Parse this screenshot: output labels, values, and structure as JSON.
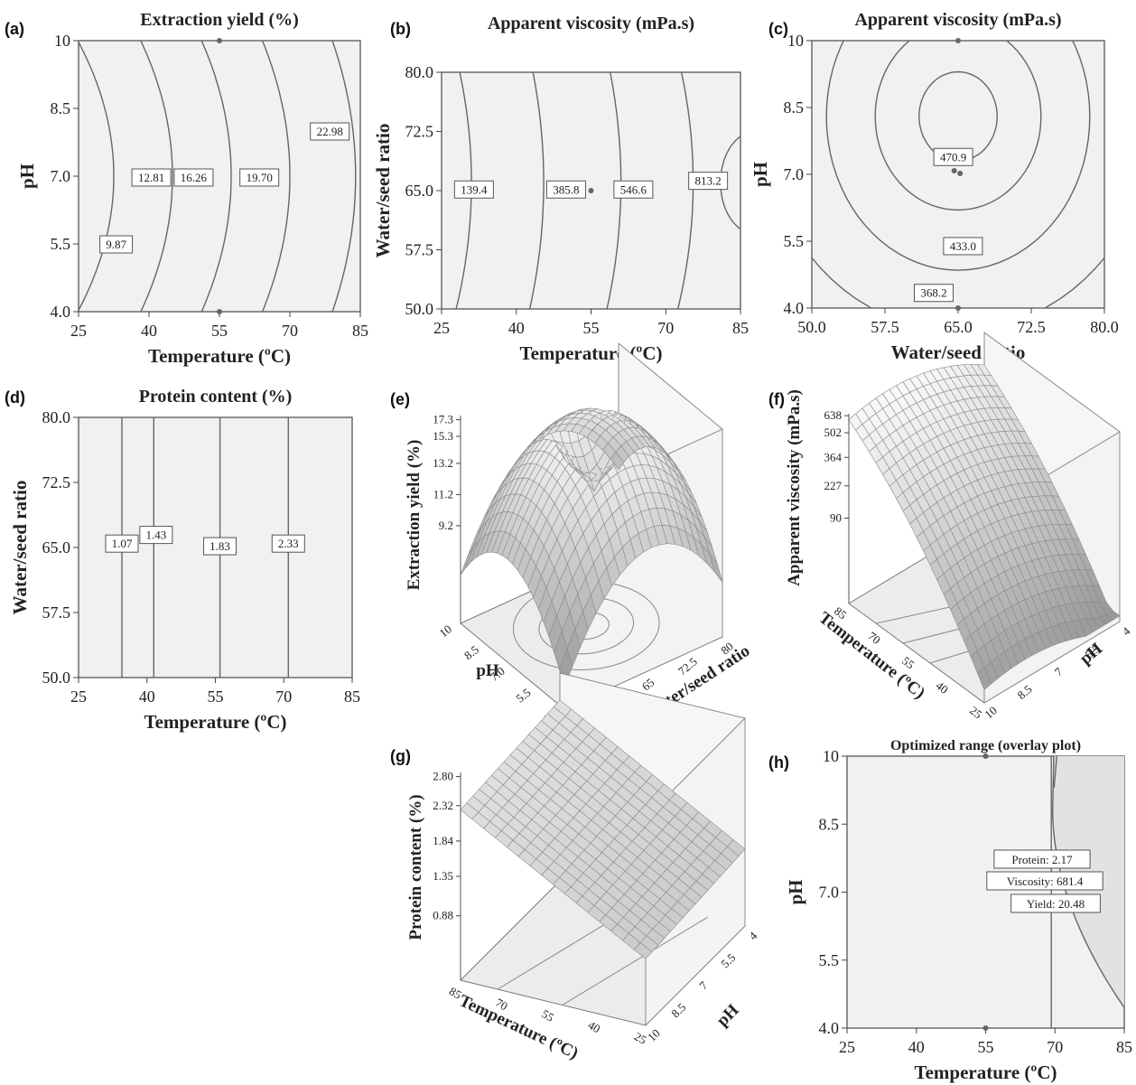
{
  "chart_data": [
    {
      "panel": "(a)",
      "type": "contour",
      "title": "Extraction yield (%)",
      "xlabel": "Temperature (ºC)",
      "ylabel": "pH",
      "xticks": [
        "25",
        "40",
        "55",
        "70",
        "85"
      ],
      "yticks": [
        "4.0",
        "5.5",
        "7.0",
        "8.5",
        "10"
      ],
      "xlim": [
        25,
        85
      ],
      "ylim": [
        4,
        10
      ],
      "contour_labels": [
        {
          "text": "9.87",
          "x": 33,
          "y": 5.5
        },
        {
          "text": "12.81",
          "x": 40.5,
          "y": 6.98
        },
        {
          "text": "16.26",
          "x": 49.5,
          "y": 6.98
        },
        {
          "text": "19.70",
          "x": 63.5,
          "y": 6.98
        },
        {
          "text": "22.98",
          "x": 78.5,
          "y": 8.0
        }
      ],
      "design_points": [
        {
          "x": 55,
          "y": 10
        },
        {
          "x": 55,
          "y": 4
        }
      ]
    },
    {
      "panel": "(b)",
      "type": "contour",
      "title": "Apparent viscosity (mPa.s)",
      "xlabel": "Temperature (ºC)",
      "ylabel": "Water/seed ratio",
      "xticks": [
        "25",
        "40",
        "55",
        "70",
        "85"
      ],
      "yticks": [
        "50.0",
        "57.5",
        "65.0",
        "72.5",
        "80.0"
      ],
      "xlim": [
        25,
        85
      ],
      "ylim": [
        50,
        80
      ],
      "contour_labels": [
        {
          "text": "139.4",
          "x": 31.5,
          "y": 65.2
        },
        {
          "text": "385.8",
          "x": 50,
          "y": 65.2
        },
        {
          "text": "546.6",
          "x": 63.5,
          "y": 65.2
        },
        {
          "text": "813.2",
          "x": 78.5,
          "y": 66.3
        }
      ],
      "design_points": [
        {
          "x": 55,
          "y": 65
        }
      ]
    },
    {
      "panel": "(c)",
      "type": "contour",
      "title": "Apparent viscosity (mPa.s)",
      "xlabel": "Water/seed ratio",
      "ylabel": "pH",
      "xticks": [
        "50.0",
        "57.5",
        "65.0",
        "72.5",
        "80.0"
      ],
      "yticks": [
        "4.0",
        "5.5",
        "7.0",
        "8.5",
        "10"
      ],
      "xlim": [
        50,
        80
      ],
      "ylim": [
        4,
        10
      ],
      "contour_labels": [
        {
          "text": "470.9",
          "x": 64.5,
          "y": 7.4
        },
        {
          "text": "433.0",
          "x": 65.5,
          "y": 5.4
        },
        {
          "text": "368.2",
          "x": 62.5,
          "y": 4.35
        }
      ],
      "design_points": [
        {
          "x": 65,
          "y": 10
        },
        {
          "x": 64.6,
          "y": 7.08
        },
        {
          "x": 65.2,
          "y": 7.02
        },
        {
          "x": 65,
          "y": 4
        }
      ]
    },
    {
      "panel": "(d)",
      "type": "contour",
      "title": "Protein content (%)",
      "xlabel": "Temperature (ºC)",
      "ylabel": "Water/seed ratio",
      "xticks": [
        "25",
        "40",
        "55",
        "70",
        "85"
      ],
      "yticks": [
        "50.0",
        "57.5",
        "65.0",
        "72.5",
        "80.0"
      ],
      "xlim": [
        25,
        85
      ],
      "ylim": [
        50,
        80
      ],
      "contour_labels": [
        {
          "text": "1.07",
          "x": 34.5,
          "y": 65.5
        },
        {
          "text": "1.43",
          "x": 42,
          "y": 66.5
        },
        {
          "text": "1.83",
          "x": 56,
          "y": 65.2
        },
        {
          "text": "2.33",
          "x": 71,
          "y": 65.5
        }
      ],
      "contour_x": [
        34.5,
        41.5,
        56,
        71
      ]
    },
    {
      "panel": "(e)",
      "type": "surface",
      "zlabel": "Extraction yield (%)",
      "zticks": [
        "9.2",
        "11.2",
        "13.2",
        "15.3",
        "17.3"
      ],
      "axis1": {
        "label": "pH",
        "ticks": [
          "10",
          "8.5",
          "7.0",
          "5.5",
          "4.0"
        ]
      },
      "axis2": {
        "label": "Water/seed ratio",
        "ticks": [
          "50",
          "57.5",
          "65",
          "72.5",
          "80"
        ]
      }
    },
    {
      "panel": "(f)",
      "type": "surface",
      "zlabel": "Apparent viscosity (mPa.s)",
      "zticks": [
        "90",
        "227",
        "364",
        "502",
        "638"
      ],
      "axis1": {
        "label": "Temperature (ºC)",
        "ticks": [
          "85",
          "70",
          "55",
          "40",
          "25"
        ]
      },
      "axis2": {
        "label": "pH",
        "ticks": [
          "10",
          "8.5",
          "7",
          "5.5",
          "4"
        ]
      }
    },
    {
      "panel": "(g)",
      "type": "surface",
      "zlabel": "Protein content (%)",
      "zticks": [
        "0.88",
        "1.35",
        "1.84",
        "2.32",
        "2.80"
      ],
      "axis1": {
        "label": "Temperature (ºC)",
        "ticks": [
          "85",
          "70",
          "55",
          "40",
          "25"
        ]
      },
      "axis2": {
        "label": "pH",
        "ticks": [
          "10",
          "8.5",
          "7",
          "5.5",
          "4"
        ]
      }
    },
    {
      "panel": "(h)",
      "type": "overlay",
      "title": "Optimized range (overlay plot)",
      "xlabel": "Temperature (ºC)",
      "ylabel": "pH",
      "xticks": [
        "25",
        "40",
        "55",
        "70",
        "85"
      ],
      "yticks": [
        "4.0",
        "5.5",
        "7.0",
        "8.5",
        "10"
      ],
      "xlim": [
        25,
        85
      ],
      "ylim": [
        4,
        10
      ],
      "annotations": [
        "Protein: 2.17",
        "Viscosity: 681.4",
        "Yield: 20.48"
      ],
      "design_points": [
        {
          "x": 55,
          "y": 10
        },
        {
          "x": 55,
          "y": 4
        }
      ]
    }
  ]
}
